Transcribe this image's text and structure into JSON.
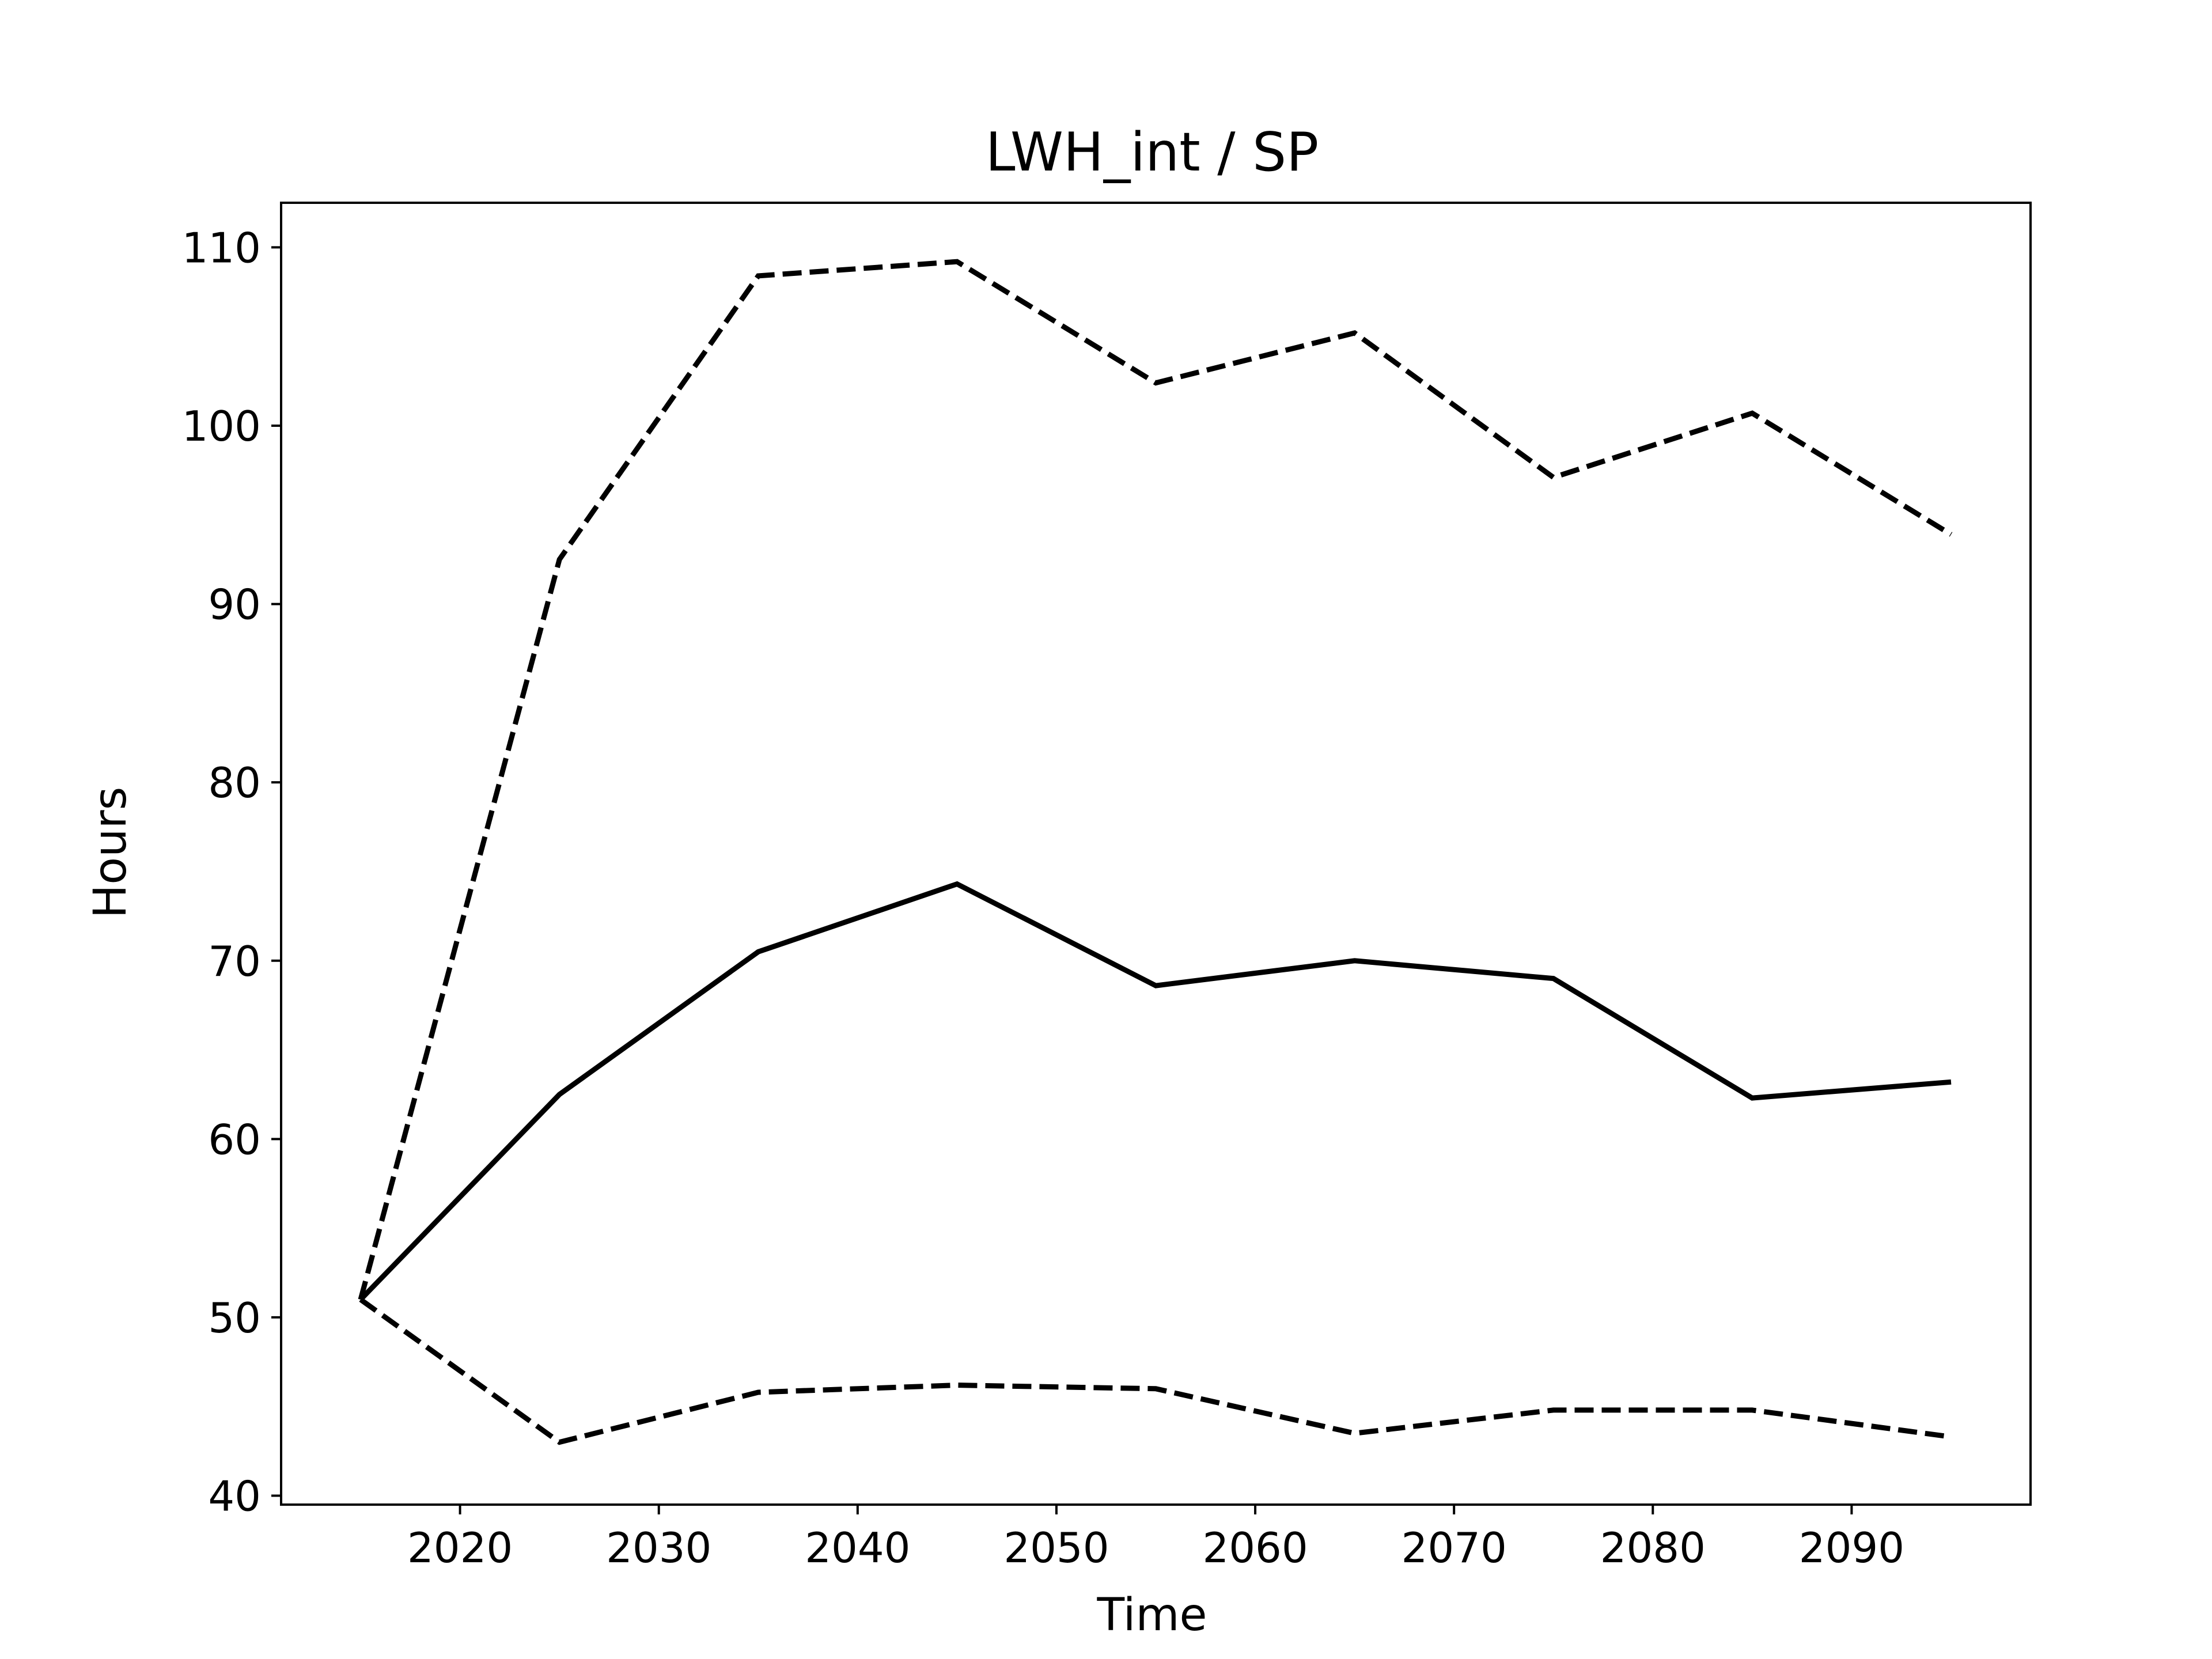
{
  "chart_data": {
    "type": "line",
    "title": "LWH_int / SP",
    "xlabel": "Time",
    "ylabel": "Hours",
    "xlim": [
      2011,
      2099
    ],
    "ylim": [
      39.5,
      112.5
    ],
    "xticks": [
      2020,
      2030,
      2040,
      2050,
      2060,
      2070,
      2080,
      2090
    ],
    "yticks": [
      40,
      50,
      60,
      70,
      80,
      90,
      100,
      110
    ],
    "grid": false,
    "legend": false,
    "x": [
      2015,
      2025,
      2035,
      2045,
      2055,
      2065,
      2075,
      2085,
      2095
    ],
    "series": [
      {
        "style": "solid",
        "color": "#000000",
        "values": [
          51.0,
          62.5,
          70.5,
          74.3,
          68.6,
          70.0,
          69.0,
          62.3,
          63.2
        ]
      },
      {
        "style": "dashed",
        "color": "#000000",
        "values": [
          51.0,
          92.5,
          108.4,
          109.2,
          102.4,
          105.2,
          97.1,
          100.7,
          93.9
        ]
      },
      {
        "style": "dashed",
        "color": "#000000",
        "values": [
          51.0,
          43.0,
          45.8,
          46.2,
          46.0,
          43.5,
          44.8,
          44.8,
          43.3
        ]
      }
    ]
  }
}
